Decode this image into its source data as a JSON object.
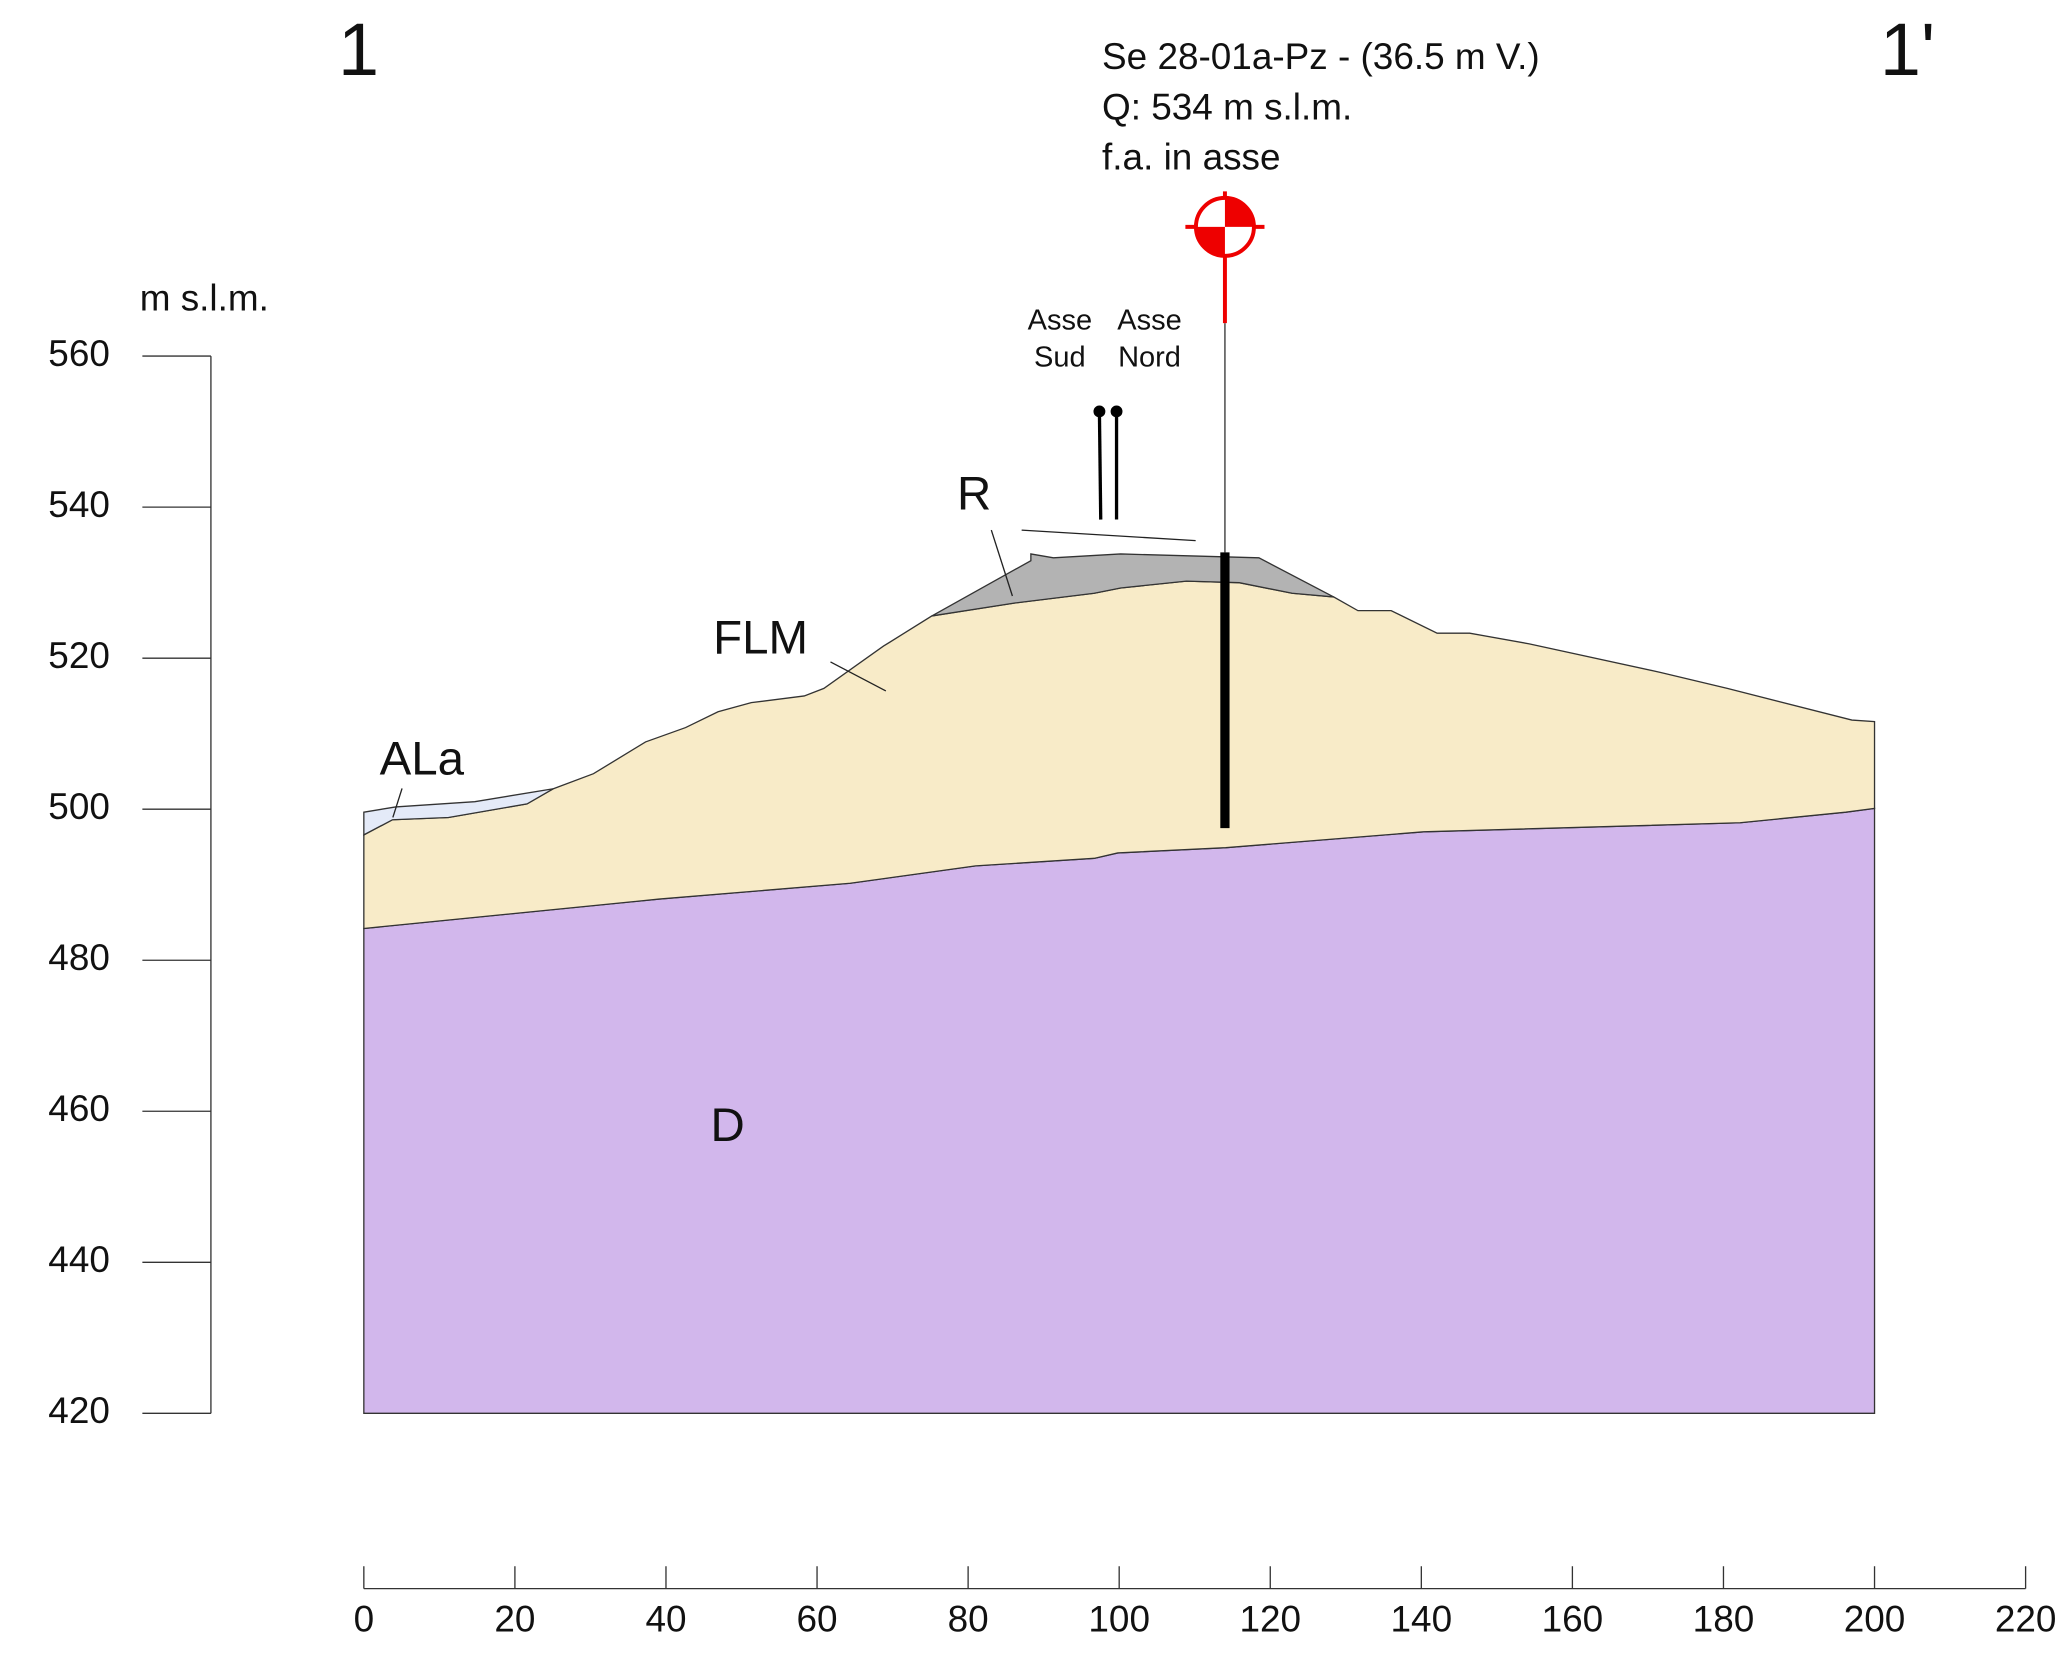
{
  "chart_data": {
    "type": "cross-section",
    "section_start": "1",
    "section_end": "1'",
    "ylabel": "m s.l.m.",
    "xlim": [
      0,
      220
    ],
    "xticks": [
      0,
      20,
      40,
      60,
      80,
      100,
      120,
      140,
      160,
      180,
      200,
      220
    ],
    "ylim": [
      420,
      560
    ],
    "yticks": [
      420,
      440,
      460,
      480,
      500,
      520,
      540,
      560
    ],
    "layers": [
      {
        "name": "D",
        "color": "#d2b7ec",
        "x": [
          0,
          39.1,
          64.4,
          81,
          96.7,
          99.8,
          114.1,
          140.3,
          182.2,
          196.2,
          200,
          200,
          0
        ],
        "y": [
          484.2,
          488.1,
          490.2,
          492.5,
          493.5,
          494.2,
          494.9,
          497,
          498.2,
          499.6,
          500.1,
          420,
          420
        ]
      },
      {
        "name": "FLM",
        "color": "#f8ebc8",
        "x": [
          0,
          3.8,
          11.2,
          21.6,
          25.1,
          30.4,
          37.3,
          42.6,
          46.9,
          51.3,
          58.3,
          60.9,
          68.8,
          75.2,
          86.2,
          96.7,
          100.2,
          108.9,
          115.9,
          122.9,
          128.4,
          131.6,
          136,
          142.1,
          146.4,
          154.3,
          171.7,
          180.5,
          197,
          200,
          200,
          196.2,
          182.2,
          140.3,
          114.1,
          99.8,
          96.7,
          81,
          64.4,
          39.1,
          0
        ],
        "y": [
          496.6,
          498.6,
          498.9,
          500.7,
          502.7,
          504.7,
          508.9,
          510.8,
          512.9,
          514.1,
          515,
          516,
          521.6,
          525.6,
          527.3,
          528.6,
          529.3,
          530.2,
          530,
          528.6,
          528.1,
          526.3,
          526.3,
          523.3,
          523.3,
          521.9,
          518.1,
          516,
          511.8,
          511.6,
          500.1,
          499.6,
          498.2,
          497,
          494.9,
          494.2,
          493.5,
          492.5,
          490.2,
          488.1,
          484.2
        ]
      },
      {
        "name": "R",
        "color": "#b3b3b3",
        "x": [
          75.2,
          88.3,
          88.3,
          91.3,
          100.2,
          118.5,
          128.4,
          122.9,
          115.9,
          108.9,
          100.2,
          96.7,
          86.2
        ],
        "y": [
          525.6,
          532.9,
          533.8,
          533.3,
          533.8,
          533.3,
          528.1,
          528.6,
          530,
          530.2,
          529.3,
          528.6,
          527.3
        ]
      },
      {
        "name": "ALa",
        "color": "#e4eaf8",
        "x": [
          0,
          4.2,
          14.7,
          25.1,
          21.6,
          11.2,
          3.8,
          0
        ],
        "y": [
          499.6,
          500.3,
          501,
          502.7,
          500.7,
          498.9,
          498.6,
          496.6
        ]
      }
    ],
    "borehole": {
      "labels": [
        "Se 28-01a-Pz - (36.5 m V.)",
        "Q: 534 m s.l.m.",
        "f.a. in asse"
      ],
      "x": 114,
      "elevation": 534,
      "depth": 36.5
    },
    "axis_markers": [
      "Asse",
      "Sud",
      "Asse",
      "Nord"
    ]
  }
}
